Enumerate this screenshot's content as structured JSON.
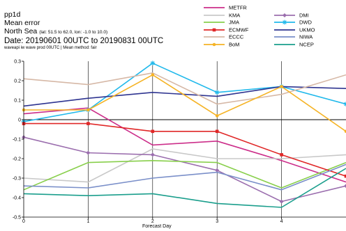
{
  "header": {
    "product": "pp1d",
    "metric": "Mean error",
    "region": "North Sea",
    "coords": "(lat: 51.5 to 62.0, lon: -1.0 to 10.0)",
    "date": "Date: 20190601 00UTC to 20190831 00UTC",
    "note": "waveapi iw wave prod 00UTC | Mean method: fair"
  },
  "chart_data": {
    "type": "line",
    "xlabel": "Forecast Day",
    "ylabel": "",
    "x": [
      0,
      1,
      2,
      3,
      4,
      5
    ],
    "xticks": [
      "0",
      "1",
      "2",
      "3",
      "4"
    ],
    "xlim": [
      0,
      5
    ],
    "ylim": [
      -0.5,
      0.3
    ],
    "yticks": [
      "0.3",
      "0.2",
      "0.1",
      "0",
      "-0.1",
      "-0.2",
      "-0.3",
      "-0.4",
      "-0.5"
    ],
    "ytick_values": [
      0.3,
      0.2,
      0.1,
      0,
      -0.1,
      -0.2,
      -0.3,
      -0.4,
      -0.5
    ],
    "zero_line": true,
    "grid": "vertical",
    "legend_position": "top-right",
    "series": [
      {
        "name": "METFR",
        "color": "#cc2e8a",
        "marker": "none",
        "values": [
          0.03,
          0.06,
          -0.13,
          -0.11,
          -0.21,
          -0.32
        ]
      },
      {
        "name": "KMA",
        "color": "#c8c8c8",
        "marker": "none",
        "values": [
          -0.3,
          -0.32,
          -0.15,
          -0.2,
          -0.2,
          -0.18
        ]
      },
      {
        "name": "DMI",
        "color": "#9b6eae",
        "marker": "diamond",
        "values": [
          -0.09,
          -0.17,
          -0.18,
          -0.26,
          -0.42,
          -0.34
        ]
      },
      {
        "name": "JMA",
        "color": "#88cf4b",
        "marker": "none",
        "values": [
          -0.36,
          -0.22,
          -0.21,
          -0.22,
          -0.35,
          -0.22
        ]
      },
      {
        "name": "DWD",
        "color": "#21b9eb",
        "marker": "star",
        "values": [
          -0.01,
          0.05,
          0.29,
          0.14,
          0.17,
          0.08
        ]
      },
      {
        "name": "ECMWF",
        "color": "#e02727",
        "marker": "square",
        "values": [
          -0.02,
          -0.02,
          -0.06,
          -0.06,
          -0.18,
          -0.29
        ]
      },
      {
        "name": "UKMO",
        "color": "#2e3490",
        "marker": "none",
        "values": [
          0.07,
          0.11,
          0.14,
          0.12,
          0.17,
          0.16
        ]
      },
      {
        "name": "ECCC",
        "color": "#d6b8a6",
        "marker": "none",
        "values": [
          0.21,
          0.18,
          0.24,
          0.08,
          0.13,
          0.23
        ]
      },
      {
        "name": "NIWA",
        "color": "#7a8fc9",
        "marker": "none",
        "values": [
          -0.34,
          -0.35,
          -0.3,
          -0.27,
          -0.36,
          -0.23
        ]
      },
      {
        "name": "BoM",
        "color": "#f5b325",
        "marker": "circle",
        "values": [
          0.05,
          0.05,
          0.23,
          0.02,
          0.17,
          -0.06
        ]
      },
      {
        "name": "NCEP",
        "color": "#1a9e8c",
        "marker": "none",
        "values": [
          -0.38,
          -0.39,
          -0.38,
          -0.43,
          -0.45,
          -0.25
        ]
      }
    ]
  }
}
